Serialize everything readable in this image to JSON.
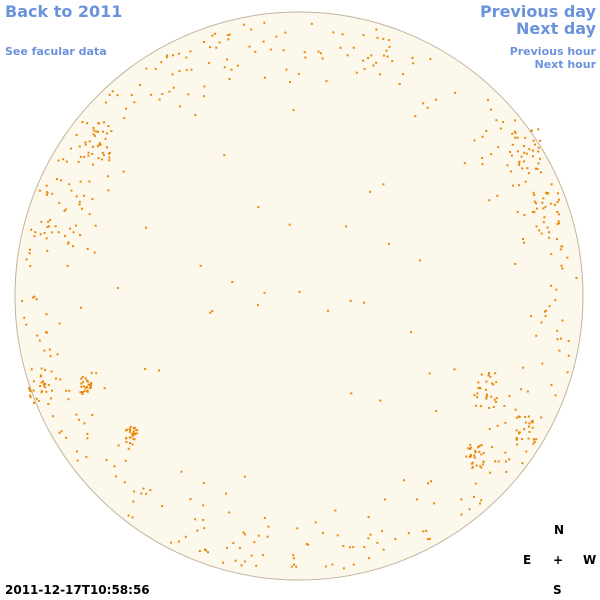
{
  "nav": {
    "back": "Back to 2011",
    "facular": "See facular data",
    "previous_day": "Previous day",
    "next_day": "Next day",
    "previous_hour": "Previous hour",
    "next_hour": "Next hour"
  },
  "timestamp": "2011-12-17T10:58:56",
  "compass": {
    "north": "N",
    "east": "E",
    "center": "+",
    "west": "W",
    "south": "S"
  }
}
